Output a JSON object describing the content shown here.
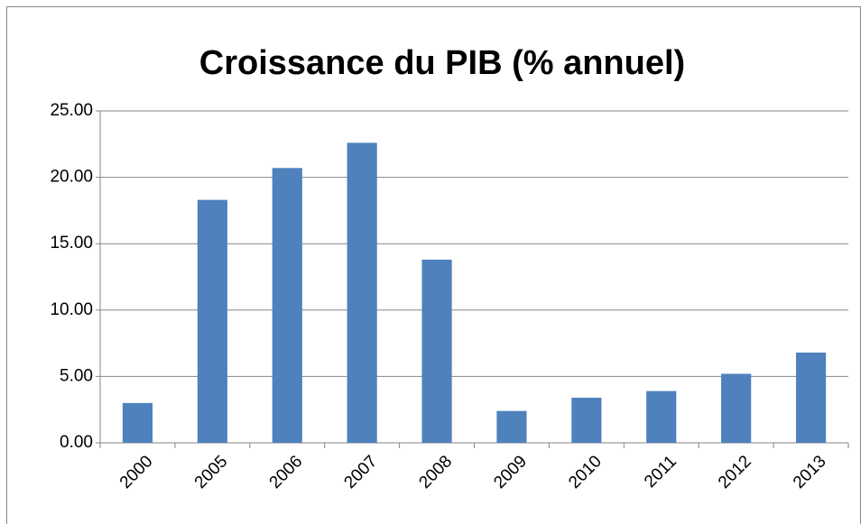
{
  "chart_data": {
    "type": "bar",
    "title": "Croissance du PIB (% annuel)",
    "categories": [
      "2000",
      "2005",
      "2006",
      "2007",
      "2008",
      "2009",
      "2010",
      "2011",
      "2012",
      "2013"
    ],
    "values": [
      3.0,
      18.3,
      20.7,
      22.6,
      13.8,
      2.4,
      3.4,
      3.9,
      5.2,
      6.8
    ],
    "color": "#4f81bd",
    "ylim": [
      0,
      25
    ],
    "yticks": [
      {
        "value": 0,
        "label": "0.00"
      },
      {
        "value": 5,
        "label": "5.00"
      },
      {
        "value": 10,
        "label": "10.00"
      },
      {
        "value": 15,
        "label": "15.00"
      },
      {
        "value": 20,
        "label": "20.00"
      },
      {
        "value": 25,
        "label": "25.00"
      }
    ],
    "grid": true
  }
}
